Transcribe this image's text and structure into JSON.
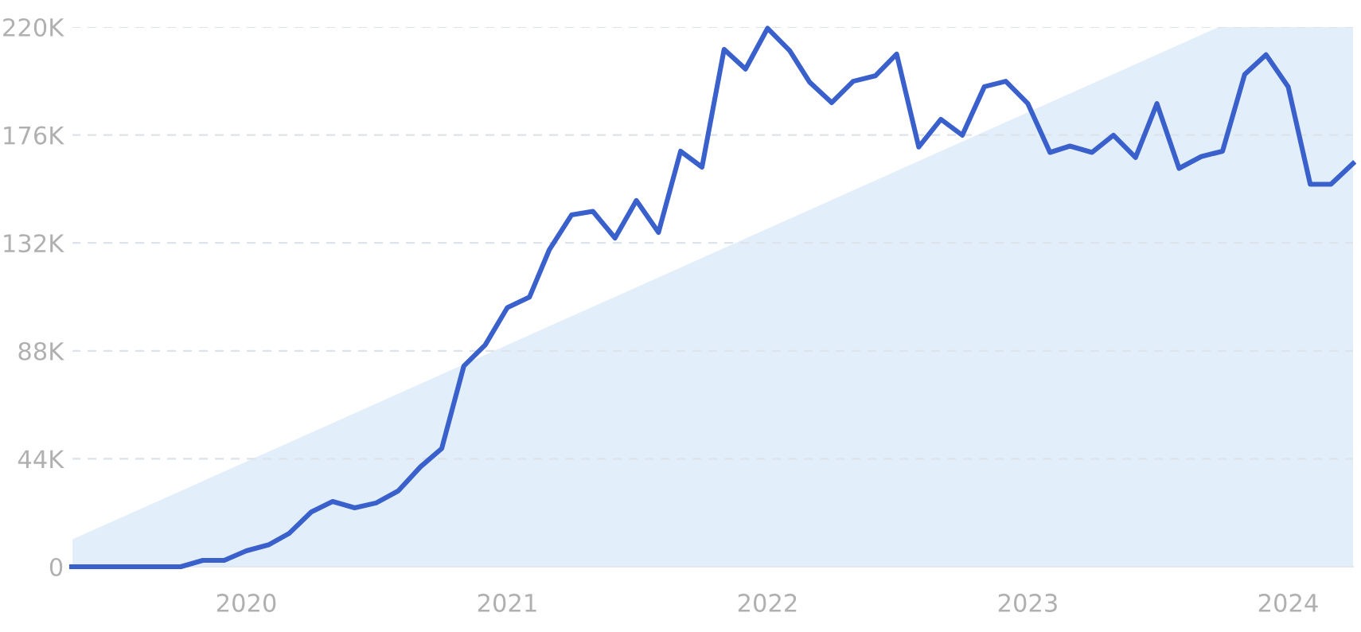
{
  "chart_data": {
    "type": "line",
    "x": [
      "2019-05",
      "2019-06",
      "2019-07",
      "2019-08",
      "2019-09",
      "2019-10",
      "2019-11",
      "2019-12",
      "2020-01",
      "2020-02",
      "2020-03",
      "2020-04",
      "2020-05",
      "2020-06",
      "2020-07",
      "2020-08",
      "2020-09",
      "2020-10",
      "2020-11",
      "2020-12",
      "2021-01",
      "2021-02",
      "2021-03",
      "2021-04",
      "2021-05",
      "2021-06",
      "2021-07",
      "2021-08",
      "2021-09",
      "2021-10",
      "2021-11",
      "2021-12",
      "2022-01",
      "2022-02",
      "2022-03",
      "2022-04",
      "2022-05",
      "2022-06",
      "2022-07",
      "2022-08",
      "2022-09",
      "2022-10",
      "2022-11",
      "2022-12",
      "2023-01",
      "2023-02",
      "2023-03",
      "2023-04",
      "2023-05",
      "2023-06",
      "2023-07",
      "2023-08",
      "2023-09",
      "2023-10",
      "2023-11",
      "2023-12",
      "2024-01",
      "2024-02",
      "2024-03",
      "2024-04"
    ],
    "series": [
      {
        "color": "#3a60cc",
        "values": [
          0,
          0,
          0,
          0,
          0,
          0,
          2600,
          2600,
          6500,
          8900,
          13600,
          22300,
          26600,
          24000,
          26000,
          30900,
          40700,
          48200,
          81800,
          90400,
          105600,
          109900,
          129300,
          143400,
          144900,
          134000,
          149300,
          136300,
          169400,
          162900,
          210900,
          202900,
          219500,
          210400,
          197500,
          189200,
          197900,
          200100,
          209000,
          171100,
          182400,
          175900,
          195700,
          197900,
          188800,
          168900,
          171500,
          168900,
          175900,
          166800,
          188800,
          162400,
          167200,
          169400,
          200700,
          208700,
          195700,
          155900,
          155900,
          164400
        ]
      }
    ],
    "xlim": [
      "2019-05",
      "2024-04"
    ],
    "xticks": [
      "2020",
      "2021",
      "2022",
      "2023",
      "2024"
    ],
    "ylim": [
      0,
      220000
    ],
    "yticks": [
      {
        "value": 0,
        "label": "0"
      },
      {
        "value": 44000,
        "label": "44K"
      },
      {
        "value": 88000,
        "label": "88K"
      },
      {
        "value": 132000,
        "label": "132K"
      },
      {
        "value": 176000,
        "label": "176K"
      },
      {
        "value": 220000,
        "label": "220K"
      }
    ],
    "grid": "y",
    "marker": "none",
    "line_style": "solid"
  }
}
